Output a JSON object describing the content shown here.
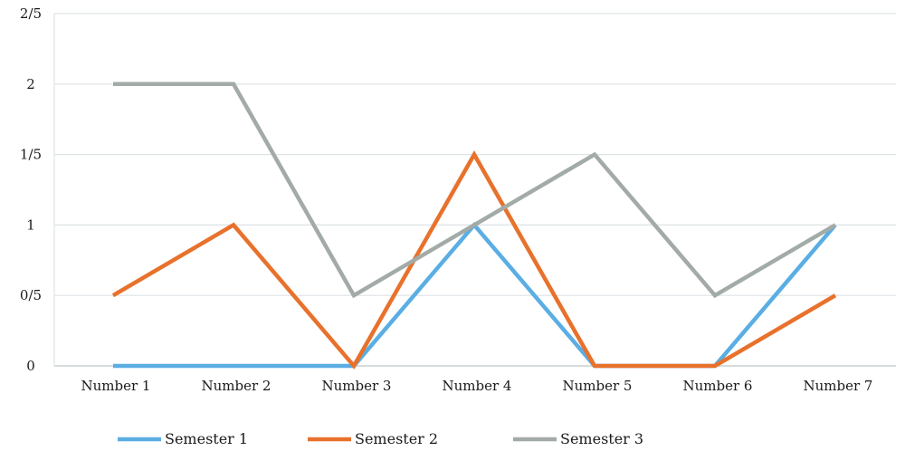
{
  "chart_data": {
    "type": "line",
    "title": "",
    "xlabel": "",
    "ylabel": "",
    "categories": [
      "Number 1",
      "Number 2",
      "Number 3",
      "Number 4",
      "Number 5",
      "Number 6",
      "Number 7"
    ],
    "ylim": [
      0,
      2.5
    ],
    "y_ticks": [
      0,
      0.5,
      1,
      1.5,
      2,
      2.5
    ],
    "y_tick_labels": [
      "0",
      "0/5",
      "1",
      "1/5",
      "2",
      "2/5"
    ],
    "grid": true,
    "legend_position": "bottom",
    "series": [
      {
        "name": "Semester 1",
        "color": "#5aaee3",
        "values": [
          0,
          0,
          0,
          1,
          0,
          0,
          1
        ]
      },
      {
        "name": "Semester 2",
        "color": "#e8712c",
        "values": [
          0.5,
          1,
          0,
          1.5,
          0,
          0,
          0.5
        ]
      },
      {
        "name": "Semester 3",
        "color": "#a3aba7",
        "values": [
          2,
          2,
          0.5,
          1,
          1.5,
          0.5,
          1
        ]
      }
    ]
  }
}
